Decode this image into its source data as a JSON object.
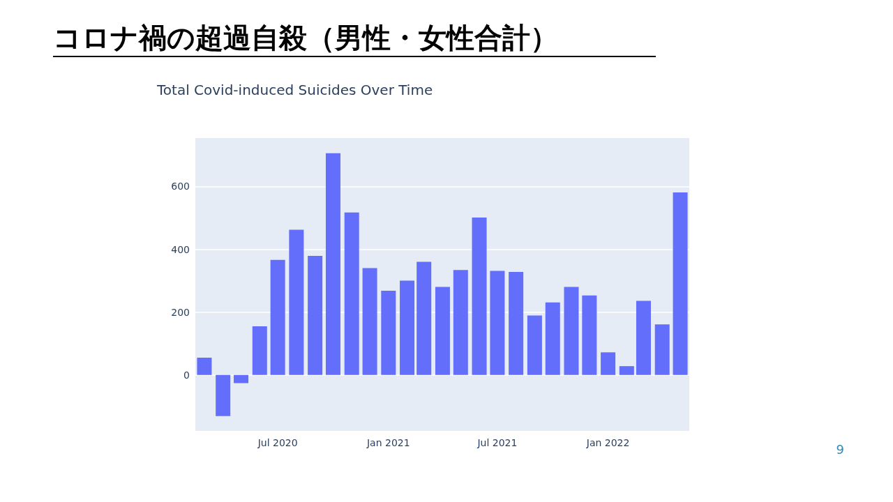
{
  "chart_data": {
    "type": "bar",
    "title": "コロナ禍の超過自殺（男性・女性合計）",
    "subtitle": "Total Covid-induced Suicides Over Time",
    "x": [
      "2020-03",
      "2020-04",
      "2020-05",
      "2020-06",
      "2020-07",
      "2020-08",
      "2020-09",
      "2020-10",
      "2020-11",
      "2020-12",
      "2021-01",
      "2021-02",
      "2021-03",
      "2021-04",
      "2021-05",
      "2021-06",
      "2021-07",
      "2021-08",
      "2021-09",
      "2021-10",
      "2021-11",
      "2021-12",
      "2022-01",
      "2022-02",
      "2022-03",
      "2022-04",
      "2022-05"
    ],
    "values": [
      55,
      -131,
      -26,
      155,
      366,
      462,
      379,
      706,
      517,
      340,
      268,
      300,
      360,
      280,
      334,
      501,
      331,
      328,
      189,
      231,
      280,
      253,
      72,
      28,
      236,
      161,
      581
    ],
    "color": "#636efa",
    "xlim": [
      "2020-02-15",
      "2022-05-16"
    ],
    "xticks": [
      {
        "value": "2020-07",
        "label": "Jul 2020"
      },
      {
        "value": "2021-01",
        "label": "Jan 2021"
      },
      {
        "value": "2021-07",
        "label": "Jul 2021"
      },
      {
        "value": "2022-01",
        "label": "Jan 2022"
      }
    ],
    "ylim": [
      -178,
      754
    ],
    "yticks": [
      0,
      200,
      400,
      600
    ],
    "grid": "y",
    "annotations": [
      "9"
    ]
  }
}
